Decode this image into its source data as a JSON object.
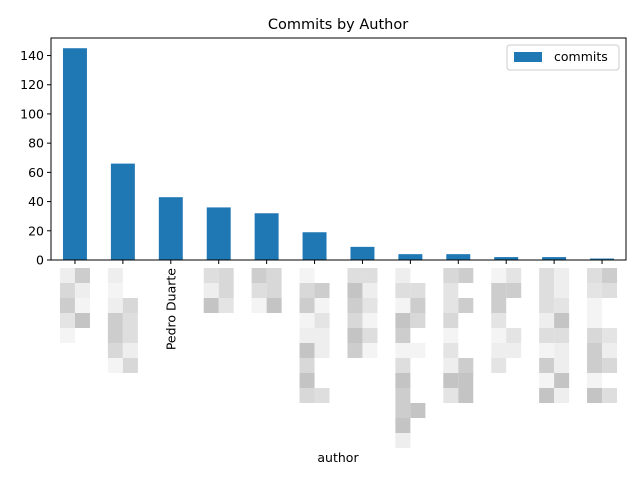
{
  "chart_data": {
    "type": "bar",
    "title": "Commits by Author",
    "xlabel": "author",
    "ylabel": "",
    "categories": [
      "",
      "",
      "Pedro Duarte",
      "",
      "",
      "",
      "",
      "",
      "",
      "",
      "",
      ""
    ],
    "series": [
      {
        "name": "commits",
        "values": [
          145,
          66,
          43,
          36,
          32,
          19,
          9,
          4,
          4,
          2,
          2,
          1
        ],
        "color": "#1f77b4"
      }
    ],
    "ylim": [
      0,
      152
    ],
    "yticks": [
      0,
      20,
      40,
      60,
      80,
      100,
      120,
      140
    ],
    "grid": false,
    "legend_position": "top-right"
  }
}
